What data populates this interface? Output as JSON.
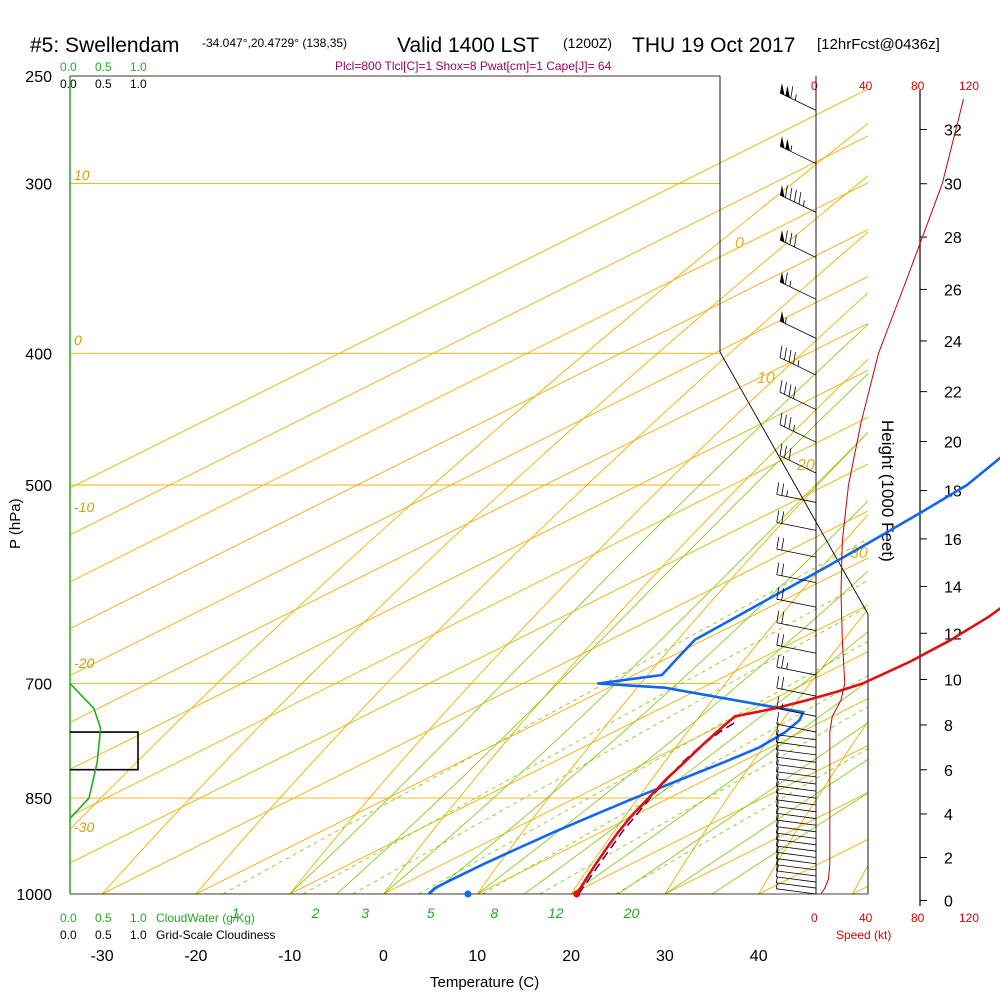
{
  "header": {
    "station": "#5: Swellendam",
    "coords": "-34.047°,20.4729° (138,35)",
    "valid": "Valid 1400 LST",
    "valid_utc": "(1200Z)",
    "date": "THU 19 Oct 2017",
    "forecast": "[12hrFcst@0436z]",
    "indices": "Plcl=800 Tlcl[C]=1 Shox=8 Pwat[cm]=1 Cape[J]= 64"
  },
  "cloudwater_scale": {
    "labels": [
      "0.0",
      "0.5",
      "1.0"
    ],
    "title": "CloudWater (g/Kg)"
  },
  "cloudiness_scale": {
    "labels": [
      "0.0",
      "0.5",
      "1.0"
    ],
    "title": "Grid-Scale Cloudiness"
  },
  "speed_scale": {
    "labels": [
      "0",
      "40",
      "80",
      "120"
    ],
    "title": "Speed (kt)"
  },
  "colors": {
    "temperature": "#dd1111",
    "dewpoint": "#1166ee",
    "parcel": "#660066",
    "isotherm_isobar": "#f0b000",
    "mixing_ratio": "#88cc22",
    "cloudwater": "#22aa22",
    "wind_speed": "#cc0000"
  },
  "chart_data": {
    "type": "line",
    "subtype": "skew-T log-p sounding",
    "xlabel": "Temperature (C)",
    "ylabel": "P (hPa)",
    "y2label": "Height (1000 Feet)",
    "x_ticks": [
      -30,
      -20,
      -10,
      0,
      10,
      20,
      30,
      40
    ],
    "p_ticks": [
      250,
      300,
      400,
      500,
      700,
      850,
      1000
    ],
    "height_ticks_kft": [
      0,
      2,
      4,
      6,
      8,
      10,
      12,
      14,
      16,
      18,
      20,
      22,
      24,
      26,
      28,
      30,
      32
    ],
    "mixing_ratio_labels": [
      "1",
      "2",
      "3",
      "5",
      "8",
      "12",
      "20"
    ],
    "theta_labels": [
      "10",
      "0",
      "-10",
      "-20",
      "-30"
    ],
    "thetae_labels": [
      "0",
      "10",
      "20",
      "30"
    ],
    "plim_hpa": [
      250,
      1000
    ],
    "series": [
      {
        "name": "Temperature",
        "p": [
          1000,
          975,
          950,
          925,
          900,
          875,
          850,
          825,
          800,
          775,
          760,
          750,
          740,
          730,
          720,
          710,
          700,
          675,
          650,
          625,
          600,
          575,
          550,
          525,
          500,
          475,
          450,
          425,
          400,
          375,
          350,
          325,
          300,
          275,
          260
        ],
        "t": [
          20.6,
          18.4,
          16.2,
          14.0,
          11.8,
          9.7,
          7.8,
          5.8,
          4.0,
          2.1,
          1.0,
          0.3,
          -0.4,
          2.2,
          3.8,
          5.2,
          6.2,
          6.6,
          6.3,
          5.4,
          3.8,
          2.0,
          -0.3,
          -3.0,
          -6.0,
          -9.5,
          -13.0,
          -16.5,
          -20.2,
          -24.2,
          -28.4,
          -33.2,
          -38.3,
          -43.5,
          -46.5
        ]
      },
      {
        "name": "Dewpoint",
        "p": [
          1000,
          990,
          975,
          950,
          925,
          900,
          875,
          850,
          825,
          800,
          780,
          760,
          745,
          735,
          705,
          700,
          690,
          670,
          650,
          625,
          600,
          575,
          550,
          525,
          500,
          475,
          450,
          425,
          400,
          375,
          350,
          325,
          300,
          275,
          260
        ],
        "t": [
          4.8,
          4.2,
          4.2,
          4.3,
          4.6,
          5.0,
          5.6,
          6.3,
          7.2,
          8.2,
          8.8,
          8.3,
          7.3,
          6.0,
          -14.0,
          -22.0,
          -17.0,
          -19.0,
          -21.0,
          -21.5,
          -22.0,
          -22.5,
          -23.2,
          -24.0,
          -25.0,
          -27.5,
          -30.5,
          -33.5,
          -36.5,
          -40.0,
          -44.0,
          -49.0,
          -54.0,
          -60.0,
          -64.0
        ]
      },
      {
        "name": "Parcel",
        "p": [
          1000,
          950,
          900,
          850,
          800,
          780,
          760,
          745
        ],
        "t": [
          20.8,
          16.6,
          12.2,
          8.0,
          3.8,
          2.4,
          1.3,
          0.8
        ]
      },
      {
        "name": "Wind Speed",
        "p": [
          1000,
          990,
          975,
          950,
          925,
          900,
          850,
          800,
          760,
          740,
          720,
          700,
          650,
          600,
          550,
          500,
          450,
          400,
          350,
          300,
          260
        ],
        "speed_kt": [
          4,
          7,
          10,
          11,
          11,
          11,
          11,
          11,
          11,
          13,
          20,
          23,
          21,
          20,
          21,
          26,
          36,
          50,
          74,
          101,
          118
        ]
      },
      {
        "name": "Grid-Scale Cloudiness",
        "p": [
          760,
          760,
          810,
          810
        ],
        "value": [
          0.0,
          1.0,
          1.0,
          0.0
        ]
      },
      {
        "name": "CloudWater",
        "p": [
          700,
          730,
          755,
          800,
          850,
          880
        ],
        "value": [
          0.0,
          0.35,
          0.45,
          0.4,
          0.28,
          0.0
        ]
      }
    ]
  }
}
